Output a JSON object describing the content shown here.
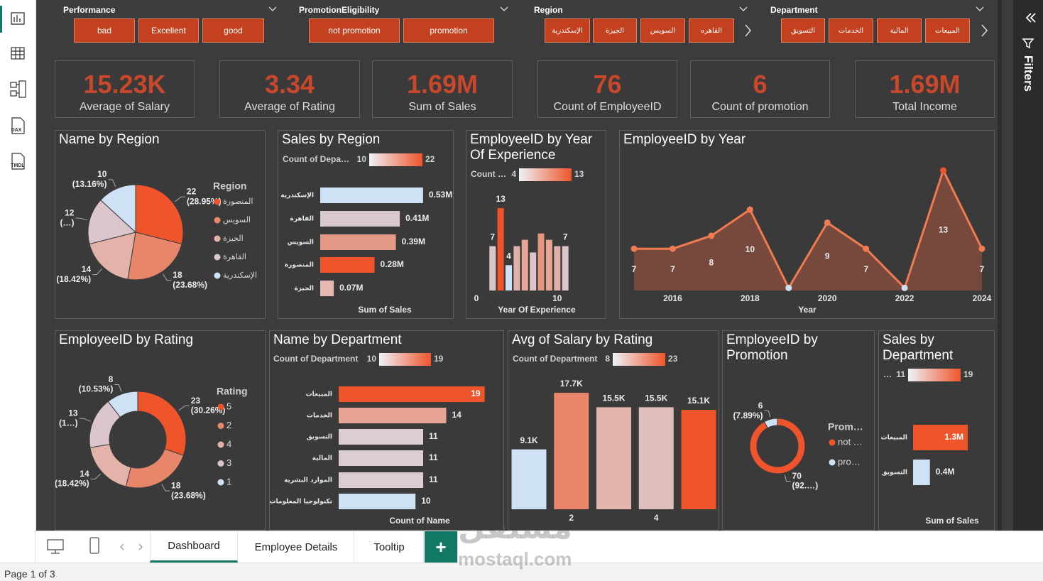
{
  "nav": {
    "icons": [
      "DAX",
      "TMDL"
    ]
  },
  "slicers": [
    {
      "title": "Performance",
      "items": [
        "bad",
        "Excellent",
        "good"
      ]
    },
    {
      "title": "PromotionEligibility",
      "items": [
        "not promotion",
        "promotion"
      ]
    },
    {
      "title": "Region",
      "items": [
        "الإسكندرية",
        "الجيزة",
        "السويس",
        "القاهره"
      ]
    },
    {
      "title": "Department",
      "items": [
        "التسويق",
        "الخدمات",
        "المالية",
        "المبيعات"
      ]
    }
  ],
  "cards": [
    {
      "value": "15.23K",
      "label": "Average of Salary"
    },
    {
      "value": "3.34",
      "label": "Average of Rating"
    },
    {
      "value": "1.69M",
      "label": "Sum of Sales"
    },
    {
      "value": "76",
      "label": "Count of EmployeeID"
    },
    {
      "value": "6",
      "label": "Count of promotion"
    },
    {
      "value": "1.69M",
      "label": "Total Income"
    }
  ],
  "chart_data": [
    {
      "type": "pie",
      "title": "Name by Region",
      "legend_title": "Region",
      "categories": [
        "المنصورة",
        "السويس",
        "الجيزة",
        "القاهرة",
        "الإسكندرية"
      ],
      "values": [
        22,
        18,
        14,
        12,
        10
      ],
      "value_labels": [
        "22 (28.95%)",
        "18 (23.68%)",
        "14 (18.42%)",
        "12 (…)",
        "10 (13.16%)"
      ],
      "colors": [
        "#f0542a",
        "#e8866c",
        "#e3b2a9",
        "#dac6cc",
        "#cfe1f5"
      ]
    },
    {
      "type": "hbar",
      "title": "Sales by Region",
      "categories": [
        "الإسكندرية",
        "القاهرة",
        "السويس",
        "المنصورة",
        "الجيزة"
      ],
      "values": [
        0.53,
        0.41,
        0.39,
        0.28,
        0.07
      ],
      "value_labels": [
        "0.53M",
        "0.41M",
        "0.39M",
        "0.28M",
        "0.07M"
      ],
      "colors": [
        "#cfe1f5",
        "#d9c8cd",
        "#e49a86",
        "#f0542a",
        "#e6b8b0"
      ],
      "xlim": [
        0,
        0.6
      ],
      "xlabel": "Sum of Sales",
      "color_legend": {
        "title": "Count of Depa…",
        "min": 10,
        "max": 22,
        "colors": [
          "#eef2f7",
          "#f0542a"
        ]
      }
    },
    {
      "type": "column",
      "title": "EmployeeID by Year Of Experience",
      "x": [
        2,
        3,
        4,
        5,
        6,
        7,
        8,
        9,
        10,
        11
      ],
      "values": [
        7,
        13,
        4,
        7,
        8,
        6,
        9,
        8,
        7,
        7
      ],
      "value_labels": [
        7,
        13,
        4,
        null,
        null,
        null,
        null,
        null,
        null,
        7
      ],
      "colors": [
        "#dcc5c8",
        "#f0542a",
        "#cfe1f5",
        "#e1b0a8",
        "#e6a595",
        "#dcc5c8",
        "#e8957e",
        "#e6a595",
        "#e1b0a8",
        "#dcc5c8"
      ],
      "xticks": [
        0,
        10
      ],
      "xlim": [
        0,
        11.6
      ],
      "ylim": [
        0,
        13
      ],
      "xlabel": "Year Of Experience",
      "color_legend": {
        "title": "Count …",
        "min": 4,
        "max": 13,
        "colors": [
          "#eef2f7",
          "#f0542a"
        ]
      }
    },
    {
      "type": "area",
      "title": "EmployeeID by Year",
      "x": [
        2015,
        2016,
        2017,
        2018,
        2019,
        2020,
        2021,
        2022,
        2023,
        2024
      ],
      "values": [
        7,
        7,
        8,
        10,
        4,
        9,
        7,
        4,
        13,
        7
      ],
      "value_labels": [
        7,
        7,
        8,
        10,
        null,
        9,
        7,
        null,
        13,
        7
      ],
      "color": "#f07a52",
      "fill": "#7d4b3d",
      "marker_colors": [
        "#f07a52",
        "#f07a52",
        "#f07a52",
        "#f07a52",
        "#cfe1f5",
        "#f07a52",
        "#f07a52",
        "#cfe1f5",
        "#f0542a",
        "#f07a52"
      ],
      "xticks": [
        2016,
        2018,
        2020,
        2022,
        2024
      ],
      "xlim": [
        2015,
        2024
      ],
      "ylim": [
        3.8,
        13
      ],
      "xlabel": "Year"
    },
    {
      "type": "donut",
      "title": "EmployeeID by Rating",
      "legend_title": "Rating",
      "categories": [
        5,
        2,
        4,
        3,
        1
      ],
      "values": [
        23,
        18,
        14,
        13,
        8
      ],
      "value_labels": [
        "23 (30.26%)",
        "18 (23.68%)",
        "14 (18.42%)",
        "13 (1…)",
        "8 (10.53%)"
      ],
      "colors": [
        "#f0542a",
        "#e8866c",
        "#e3b2a9",
        "#dac6cc",
        "#cfe1f5"
      ]
    },
    {
      "type": "hbar",
      "title": "Name by Department",
      "categories": [
        "المبيعات",
        "الخدمات",
        "التسويق",
        "المالية",
        "الموارد البشرية",
        "تكنولوجيا المعلومات"
      ],
      "values": [
        19,
        14,
        11,
        11,
        11,
        10
      ],
      "colors": [
        "#f0542a",
        "#e8a596",
        "#dbcdd3",
        "#dbcdd3",
        "#dbcdd3",
        "#cfe1f5"
      ],
      "xlim": [
        0,
        19.5
      ],
      "xlabel": "Count of Name",
      "color_legend": {
        "title": "Count of Department",
        "min": 10,
        "max": 19,
        "colors": [
          "#eef2f7",
          "#f0542a"
        ]
      }
    },
    {
      "type": "column",
      "title": "Avg of Salary by Rating",
      "categories": [
        null,
        2,
        null,
        4,
        null
      ],
      "values": [
        9.1,
        17.7,
        15.5,
        15.5,
        15.1
      ],
      "value_labels": [
        "9.1K",
        "17.7K",
        "15.5K",
        "15.5K",
        "15.1K"
      ],
      "colors": [
        "#cfe1f5",
        "#e8866c",
        "#e3b5ad",
        "#dfbfbc",
        "#f0542a"
      ],
      "ylim": [
        0,
        19.1
      ],
      "color_legend": {
        "title": "Count of Department",
        "min": 8,
        "max": 23,
        "colors": [
          "#eef2f7",
          "#f0542a"
        ]
      }
    },
    {
      "type": "donut",
      "title": "EmployeeID by Promotion",
      "legend_title": "Prom…",
      "categories": [
        "not …",
        "pro…"
      ],
      "values": [
        70,
        6
      ],
      "value_labels": [
        "70 (92.…)",
        "6 (7.89%)"
      ],
      "colors": [
        "#f0542a",
        "#cfe1f5"
      ]
    },
    {
      "type": "hbar",
      "title": "Sales by Department",
      "categories": [
        "المبيعات",
        "التسويق"
      ],
      "values": [
        1.3,
        0.4
      ],
      "value_labels": [
        "1.3M",
        "0.4M"
      ],
      "colors": [
        "#f0542a",
        "#cfe1f5"
      ],
      "xlim": [
        0,
        1.4
      ],
      "xlabel": "Sum of Sales",
      "color_legend": {
        "title": "…",
        "min": 11,
        "max": 19,
        "colors": [
          "#eef2f7",
          "#f0542a"
        ]
      }
    }
  ],
  "tabs": [
    "Dashboard",
    "Employee Details",
    "Tooltip",
    "+"
  ],
  "filters_pane": "Filters",
  "status": "Page 1 of 3",
  "watermark": {
    "arabic": "مستقل",
    "latin": "mostaql.com"
  }
}
